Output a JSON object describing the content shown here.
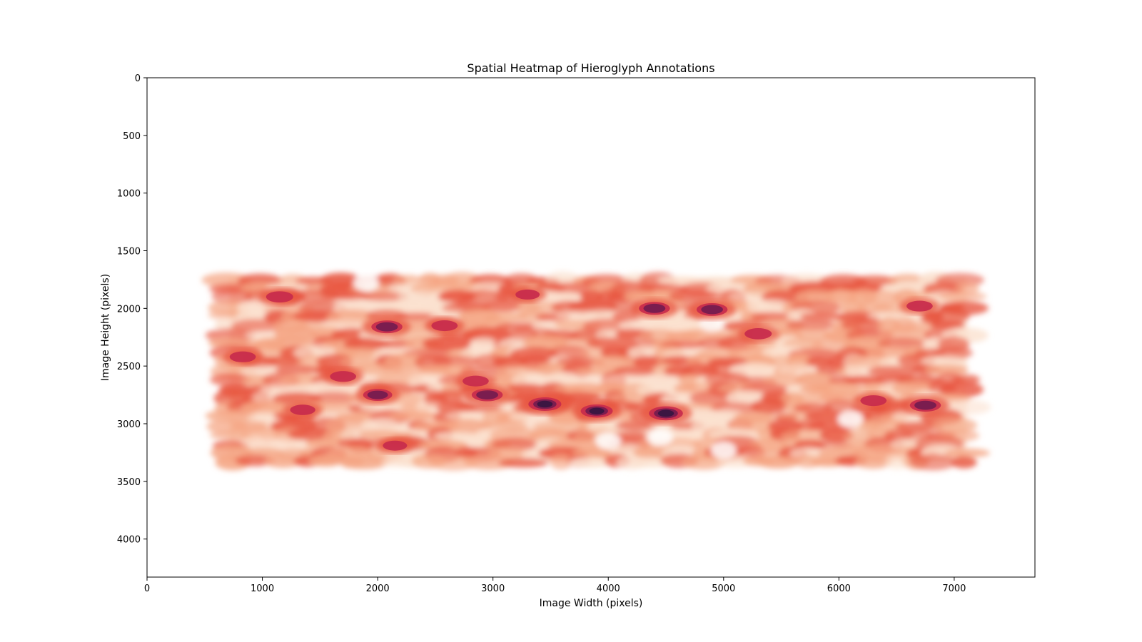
{
  "chart_data": {
    "type": "heatmap",
    "title": "Spatial Heatmap of Hieroglyph Annotations",
    "xlabel": "Image Width (pixels)",
    "ylabel": "Image Height (pixels)",
    "xlim": [
      0,
      7700
    ],
    "ylim": [
      4330,
      0
    ],
    "x_ticks": [
      0,
      1000,
      2000,
      3000,
      4000,
      5000,
      6000,
      7000
    ],
    "y_ticks": [
      0,
      500,
      1000,
      1500,
      2000,
      2500,
      3000,
      3500,
      4000
    ],
    "grid": false,
    "colormap": [
      "#fbe1cf",
      "#f5a583",
      "#e8553f",
      "#c62a4c",
      "#7a1d4f",
      "#3c1642"
    ],
    "density_extent": {
      "x": [
        650,
        7170
      ],
      "y": [
        1700,
        3370
      ]
    },
    "rows_y": [
      1760,
      1830,
      1900,
      1990,
      2070,
      2150,
      2230,
      2310,
      2390,
      2460,
      2540,
      2620,
      2700,
      2780,
      2860,
      2940,
      3020,
      3100,
      3180,
      3260,
      3330
    ],
    "hotspots": [
      {
        "x": 1150,
        "y": 1900,
        "intensity": 0.65
      },
      {
        "x": 2080,
        "y": 2160,
        "intensity": 0.85
      },
      {
        "x": 2580,
        "y": 2150,
        "intensity": 0.6
      },
      {
        "x": 830,
        "y": 2420,
        "intensity": 0.6
      },
      {
        "x": 1700,
        "y": 2590,
        "intensity": 0.6
      },
      {
        "x": 2000,
        "y": 2750,
        "intensity": 0.75
      },
      {
        "x": 2950,
        "y": 2750,
        "intensity": 0.85
      },
      {
        "x": 2850,
        "y": 2630,
        "intensity": 0.6
      },
      {
        "x": 3450,
        "y": 2830,
        "intensity": 0.95
      },
      {
        "x": 3900,
        "y": 2890,
        "intensity": 0.9
      },
      {
        "x": 4500,
        "y": 2910,
        "intensity": 1.0
      },
      {
        "x": 4400,
        "y": 2000,
        "intensity": 0.85
      },
      {
        "x": 4900,
        "y": 2010,
        "intensity": 0.85
      },
      {
        "x": 5300,
        "y": 2220,
        "intensity": 0.65
      },
      {
        "x": 6750,
        "y": 2840,
        "intensity": 0.85
      },
      {
        "x": 6300,
        "y": 2800,
        "intensity": 0.6
      },
      {
        "x": 6700,
        "y": 1980,
        "intensity": 0.6
      },
      {
        "x": 1350,
        "y": 2880,
        "intensity": 0.55
      },
      {
        "x": 2150,
        "y": 3190,
        "intensity": 0.5
      },
      {
        "x": 3300,
        "y": 1880,
        "intensity": 0.5
      }
    ],
    "gaps": [
      {
        "x": 4000,
        "y": 3150
      },
      {
        "x": 4450,
        "y": 3120
      },
      {
        "x": 5000,
        "y": 3230
      },
      {
        "x": 1900,
        "y": 1780
      },
      {
        "x": 4900,
        "y": 2130
      },
      {
        "x": 6100,
        "y": 2960
      }
    ]
  }
}
